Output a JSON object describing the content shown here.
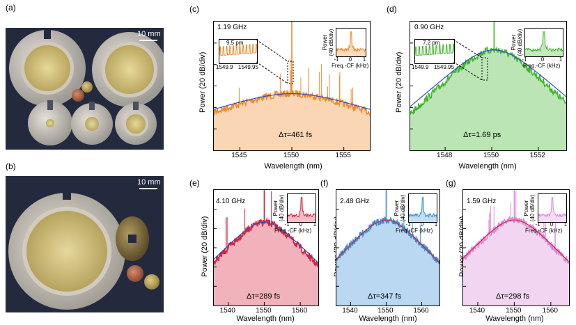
{
  "panels": {
    "a": {
      "label": "(a)",
      "scale": "10 mm"
    },
    "b": {
      "label": "(b)",
      "scale": "10 mm"
    },
    "c": {
      "label": "(c)",
      "freq": "1.19 GHz",
      "dtau": "Δτ=461 fs",
      "ylabel": "Power (20 dB/div)",
      "xlabel": "Wavelength (nm)",
      "xticks": [
        "1545",
        "1550",
        "1555"
      ],
      "zoom_label": "9.5 pm",
      "zoom_ticks": [
        "1549.9",
        "1549.95"
      ],
      "inset_ylabel": [
        "Power",
        "(40 dB/div)"
      ],
      "inset_xlabel": "Freq.-CF (kHz)",
      "inset_ticks": [
        "-1",
        "0",
        "1"
      ]
    },
    "d": {
      "label": "(d)",
      "freq": "0.90 GHz",
      "dtau": "Δτ=1.69 ps",
      "ylabel": "Power (20 dB/div)",
      "xlabel": "Wavelength (nm)",
      "xticks": [
        "1548",
        "1550",
        "1552"
      ],
      "zoom_label": "7.2 pm",
      "zoom_ticks": [
        "1549.9",
        "1549.95"
      ],
      "inset_ylabel": [
        "Power",
        "(40 dB/div)"
      ],
      "inset_xlabel": "Freq.-CF (kHz)",
      "inset_ticks": [
        "-1",
        "0",
        "1"
      ]
    },
    "e": {
      "label": "(e)",
      "freq": "4.10 GHz",
      "dtau": "Δτ=289 fs",
      "ylabel": "Power (20 dB/div)",
      "xlabel": "Wavelength (nm)",
      "xticks": [
        "1540",
        "1550",
        "1560"
      ],
      "inset_ylabel": [
        "Power",
        "(40 dB/div)"
      ],
      "inset_xlabel": "Freq.-CF (kHz)",
      "inset_ticks": [
        "-1",
        "0",
        "1"
      ]
    },
    "f": {
      "label": "(f)",
      "freq": "2.48 GHz",
      "dtau": "Δτ=347 fs",
      "ylabel": "Power (20 dB/div)",
      "xlabel": "Wavelength (nm)",
      "xticks": [
        "1540",
        "1550",
        "1560"
      ],
      "inset_ylabel": [
        "Power",
        "(40 dB/div)"
      ],
      "inset_xlabel": "Freq.-CF (kHz)",
      "inset_ticks": [
        "-1",
        "0",
        "1"
      ]
    },
    "g": {
      "label": "(g)",
      "freq": "1.59 GHz",
      "dtau": "Δτ=298 fs",
      "ylabel": "Power (20 dB/div)",
      "xlabel": "Wavelength (nm)",
      "xticks": [
        "1540",
        "1550",
        "1560"
      ],
      "inset_ylabel": [
        "Power",
        "(40 dB/div)"
      ],
      "inset_xlabel": "Freq.-CF (kHz)",
      "inset_ticks": [
        "-1",
        "0",
        "1"
      ]
    }
  },
  "chart_data": [
    {
      "id": "c",
      "type": "area",
      "x_unit": "nm",
      "xlim": [
        1542.5,
        1557.5
      ],
      "center": 1550,
      "fit": "sech2",
      "color": "#f08a2a",
      "fit_color": "#2b4fc4",
      "xticks": [
        1545,
        1550,
        1555
      ],
      "pulse_width": "461 fs",
      "rep_rate": "1.19 GHz"
    },
    {
      "id": "d",
      "type": "area",
      "x_unit": "nm",
      "xlim": [
        1546.5,
        1553.2
      ],
      "center": 1550.1,
      "fit": "sech2",
      "color": "#3fb52a",
      "fit_color": "#2b4fc4",
      "xticks": [
        1548,
        1550,
        1552
      ],
      "pulse_width": "1.69 ps",
      "rep_rate": "0.90 GHz"
    },
    {
      "id": "e",
      "type": "area",
      "x_unit": "nm",
      "xlim": [
        1536,
        1565
      ],
      "center": 1550,
      "fit": "sech2",
      "color": "#d8233c",
      "fit_color": "#2b4fc4",
      "xticks": [
        1540,
        1550,
        1560
      ],
      "pulse_width": "289 fs",
      "rep_rate": "4.10 GHz"
    },
    {
      "id": "f",
      "type": "area",
      "x_unit": "nm",
      "xlim": [
        1536,
        1565
      ],
      "center": 1550,
      "fit": "sech2",
      "color": "#3a8fd6",
      "fit_color": "#d8233c",
      "xticks": [
        1540,
        1550,
        1560
      ],
      "pulse_width": "347 fs",
      "rep_rate": "2.48 GHz"
    },
    {
      "id": "g",
      "type": "area",
      "x_unit": "nm",
      "xlim": [
        1536,
        1565
      ],
      "center": 1550,
      "fit": "sech2",
      "color": "#d98ad8",
      "fit_color": "#d8233c",
      "xticks": [
        1540,
        1550,
        1560
      ],
      "pulse_width": "298 fs",
      "rep_rate": "1.59 GHz"
    }
  ]
}
